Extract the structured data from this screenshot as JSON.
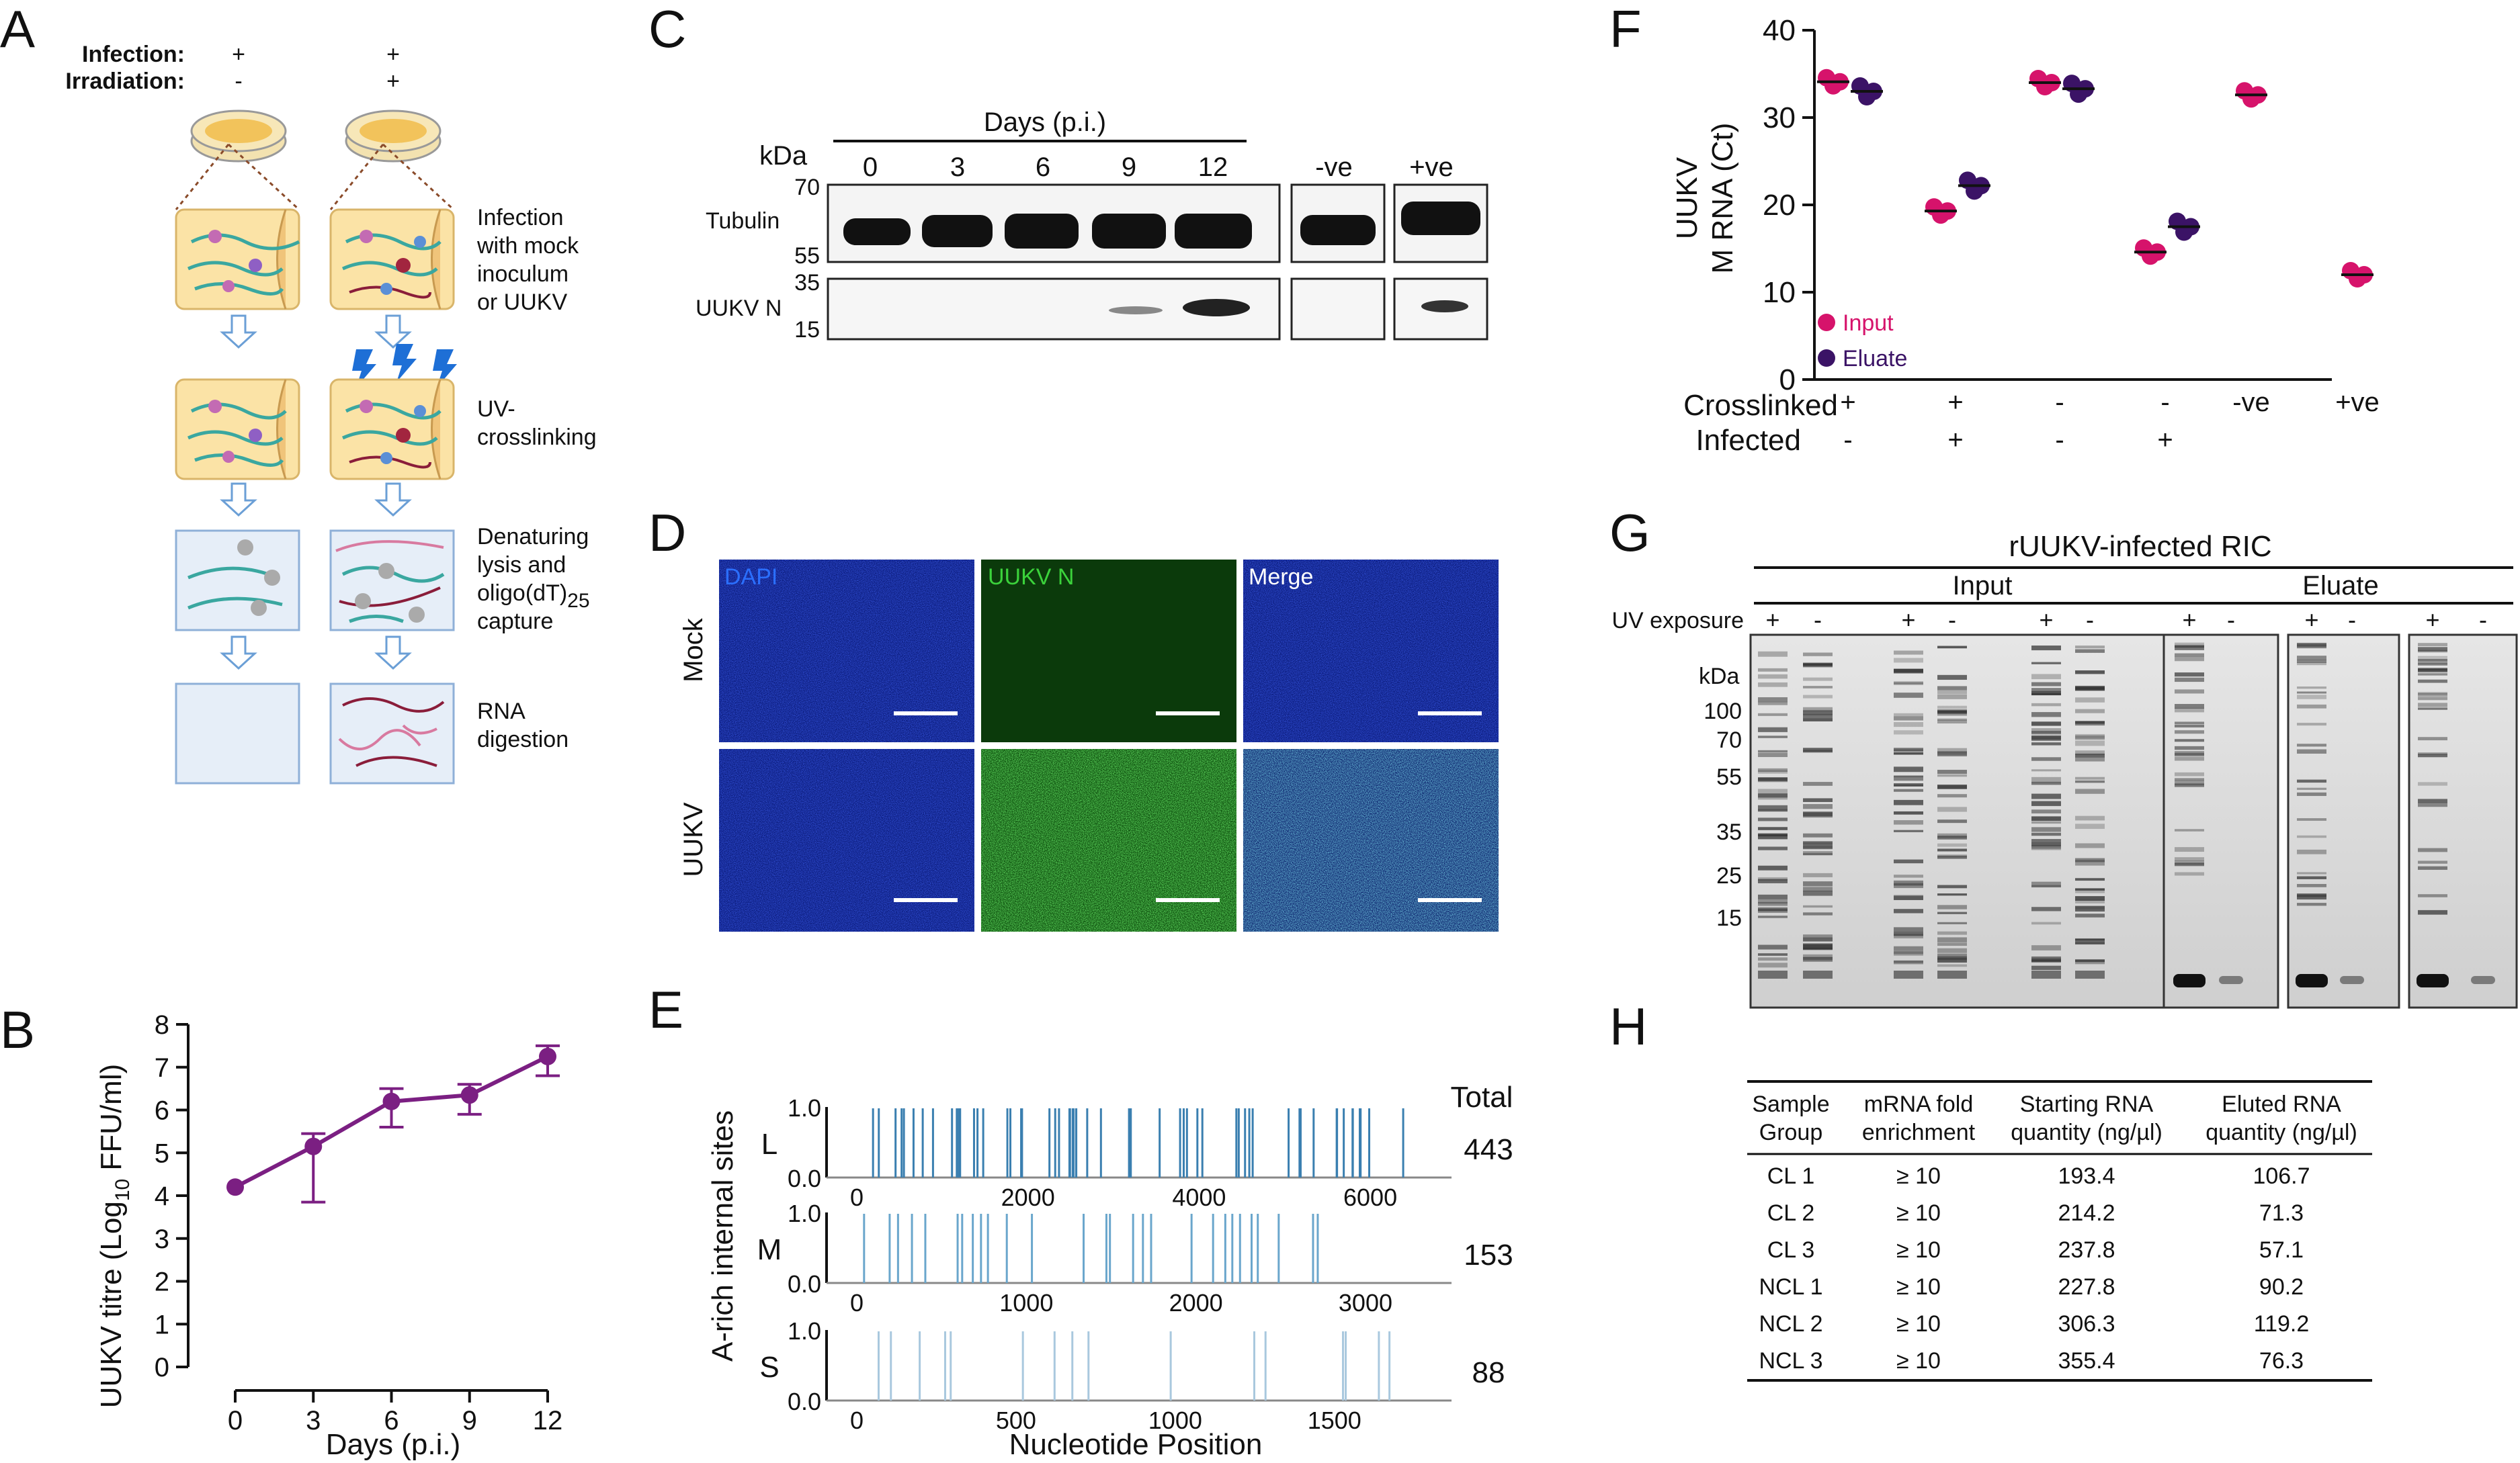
{
  "panel_labels": {
    "a": "A",
    "b": "B",
    "c": "C",
    "d": "D",
    "e": "E",
    "f": "F",
    "g": "G",
    "h": "H"
  },
  "panelA": {
    "row1_label": "Infection:",
    "row2_label": "Irradiation:",
    "col1_row1": "+",
    "col1_row2": "-",
    "col2_row1": "+",
    "col2_row2": "+",
    "step1": [
      "Infection",
      "with mock",
      "inoculum",
      "or UUKV"
    ],
    "step2": [
      "UV-",
      "crosslinking"
    ],
    "step3": [
      "Denaturing",
      "lysis and",
      "oligo(dT)",
      "25",
      "capture"
    ],
    "step4": [
      "RNA",
      "digestion"
    ]
  },
  "panelB": {
    "ylabel_prefix": "UUKV titre (Log",
    "ylabel_sub": "10",
    "ylabel_suffix": " FFU/ml)",
    "xlabel": "Days (p.i.)",
    "color": "#7b1f82",
    "chart_data": {
      "type": "line",
      "x": [
        0,
        3,
        6,
        9,
        12
      ],
      "y": [
        4.2,
        5.15,
        6.2,
        6.35,
        7.25
      ],
      "err_low": [
        0,
        1.3,
        0.6,
        0.45,
        0.45
      ],
      "err_high": [
        0,
        0.3,
        0.3,
        0.25,
        0.25
      ],
      "xticks": [
        "0",
        "3",
        "6",
        "9",
        "12"
      ],
      "yticks": [
        "0",
        "1",
        "2",
        "3",
        "4",
        "5",
        "6",
        "7",
        "8"
      ],
      "ylim": [
        0,
        8
      ]
    }
  },
  "panelC": {
    "header": "Days (p.i.)",
    "kda": "kDa",
    "lanes": [
      "0",
      "3",
      "6",
      "9",
      "12"
    ],
    "neg": "-ve",
    "pos": "+ve",
    "tubulin": "Tubulin",
    "uukvn": "UUKV N",
    "markers_top": [
      "70",
      "55"
    ],
    "markers_bottom": [
      "35",
      "15"
    ]
  },
  "panelD": {
    "channels": [
      "DAPI",
      "UUKV N",
      "Merge"
    ],
    "rows": [
      "Mock",
      "UUKV"
    ],
    "channel_colors": [
      "#2b6fff",
      "#3bd23b",
      "#ffffff"
    ]
  },
  "panelE": {
    "ylabel": "A-rich internal sites",
    "xlabel": "Nucleotide Position",
    "total_header": "Total",
    "segments": [
      {
        "name": "L",
        "total": "443",
        "xticks": [
          "0",
          "2000",
          "4000",
          "6000"
        ],
        "max": 6400,
        "color": "#3a7fb0"
      },
      {
        "name": "M",
        "total": "153",
        "xticks": [
          "0",
          "1000",
          "2000",
          "3000"
        ],
        "max": 3230,
        "color": "#6aa6cc"
      },
      {
        "name": "S",
        "total": "88",
        "xticks": [
          "0",
          "500",
          "1000",
          "1500"
        ],
        "max": 1720,
        "color": "#a9c8de"
      }
    ],
    "yticks": [
      "0.0",
      "1.0"
    ]
  },
  "panelF": {
    "ylabel1": "UUKV",
    "ylabel2": "M RNA (Ct)",
    "legend": [
      "Input",
      "Eluate"
    ],
    "colors": {
      "input": "#d6136b",
      "eluate": "#3b1366"
    },
    "row_labels": [
      "Crosslinked",
      "Infected"
    ],
    "crosslinked": [
      "+",
      "+",
      "-",
      "-",
      "-ve",
      "+ve"
    ],
    "infected": [
      "-",
      "+",
      "-",
      "+",
      "",
      ""
    ],
    "chart_data": {
      "type": "scatter",
      "yticks": [
        "0",
        "10",
        "20",
        "30",
        "40"
      ],
      "ylim": [
        0,
        40
      ],
      "groups": [
        {
          "input": 34.1,
          "eluate": 33.0
        },
        {
          "input": 19.3,
          "eluate": 22.2
        },
        {
          "input": 34.0,
          "eluate": 33.3
        },
        {
          "input": 14.6,
          "eluate": 17.5
        },
        {
          "input": 32.6,
          "eluate": null
        },
        {
          "input": 12.0,
          "eluate": null
        }
      ]
    }
  },
  "panelG": {
    "title": "rUUKV-infected RIC",
    "input": "Input",
    "eluate": "Eluate",
    "uv": "UV exposure",
    "kda": "kDa",
    "markers": [
      "100",
      "70",
      "55",
      "35",
      "25",
      "15"
    ],
    "uv_signs": [
      "+",
      "-",
      "+",
      "-",
      "+",
      "-",
      "+",
      "-",
      "+",
      "-",
      "+",
      "-"
    ]
  },
  "panelH": {
    "headers": [
      [
        "Sample",
        "Group"
      ],
      [
        "mRNA fold",
        "enrichment"
      ],
      [
        "Starting RNA",
        "quantity (ng/µl)"
      ],
      [
        "Eluted RNA",
        "quantity (ng/µl)"
      ]
    ],
    "rows": [
      [
        "CL 1",
        "≥ 10",
        "193.4",
        "106.7"
      ],
      [
        "CL 2",
        "≥ 10",
        "214.2",
        "71.3"
      ],
      [
        "CL 3",
        "≥ 10",
        "237.8",
        "57.1"
      ],
      [
        "NCL 1",
        "≥ 10",
        "227.8",
        "90.2"
      ],
      [
        "NCL 2",
        "≥ 10",
        "306.3",
        "119.2"
      ],
      [
        "NCL 3",
        "≥ 10",
        "355.4",
        "76.3"
      ]
    ]
  }
}
